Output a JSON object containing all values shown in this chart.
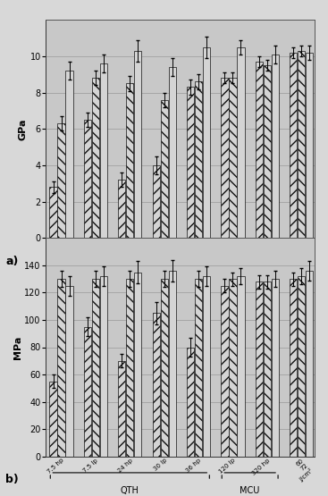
{
  "chart_a": {
    "ylabel": "GPa",
    "ylim": [
      0,
      12
    ],
    "yticks": [
      0,
      2,
      4,
      6,
      8,
      10
    ],
    "groups": [
      "7.5 hp",
      "7.5 lp",
      "24 hp",
      "30 lp",
      "36 hp",
      "120 lp",
      "320 hp",
      "60\n72\nJ/cm²"
    ],
    "bar1": [
      2.8,
      6.5,
      3.2,
      4.0,
      8.3,
      8.8,
      9.7,
      10.2
    ],
    "bar2": [
      6.3,
      8.8,
      8.5,
      7.6,
      8.6,
      8.8,
      9.5,
      10.3
    ],
    "bar3": [
      9.2,
      9.6,
      10.3,
      9.4,
      10.5,
      10.5,
      10.1,
      10.2
    ],
    "err1": [
      0.3,
      0.4,
      0.4,
      0.5,
      0.4,
      0.3,
      0.3,
      0.3
    ],
    "err2": [
      0.4,
      0.4,
      0.4,
      0.4,
      0.4,
      0.3,
      0.3,
      0.3
    ],
    "err3": [
      0.5,
      0.5,
      0.6,
      0.5,
      0.6,
      0.4,
      0.5,
      0.4
    ],
    "label": "a)"
  },
  "chart_b": {
    "ylabel": "MPa",
    "ylim": [
      0,
      160
    ],
    "yticks": [
      0,
      20,
      40,
      60,
      80,
      100,
      120,
      140
    ],
    "groups": [
      "7.5 hp",
      "7.5 lp",
      "24 hp",
      "30 lp",
      "36 hp",
      "120 lp",
      "320 hp",
      "60\n72\nJ/cm²"
    ],
    "bar1": [
      55,
      95,
      70,
      105,
      80,
      125,
      128,
      130
    ],
    "bar2": [
      130,
      130,
      130,
      130,
      130,
      130,
      128,
      132
    ],
    "bar3": [
      125,
      132,
      135,
      136,
      132,
      132,
      130,
      136
    ],
    "err1": [
      5,
      7,
      5,
      8,
      7,
      5,
      5,
      5
    ],
    "err2": [
      6,
      6,
      6,
      6,
      6,
      5,
      5,
      6
    ],
    "err3": [
      7,
      7,
      8,
      8,
      7,
      6,
      6,
      7
    ],
    "label": "b)",
    "qth_label": "QTH",
    "mcu_label": "MCU",
    "qth_range": [
      0,
      4
    ],
    "mcu_range": [
      5,
      6
    ]
  },
  "bg_color": "#d8d8d8",
  "plot_bg": "#c8c8c8",
  "wall_bg": "#bbbbbb",
  "bar_face_color": "#d4d4d4",
  "bar_edge_color": "#111111",
  "hatches": [
    "///",
    "\\\\\\",
    ""
  ],
  "grid_color": "#999999"
}
